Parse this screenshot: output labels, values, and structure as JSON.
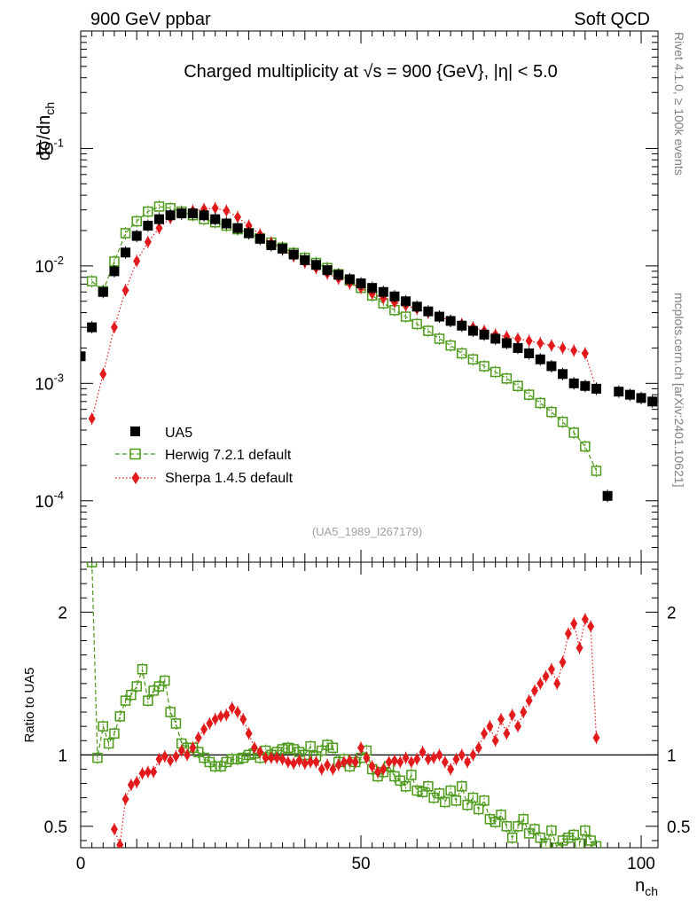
{
  "header": {
    "left": "900 GeV ppbar",
    "right": "Soft QCD"
  },
  "side_labels": {
    "rivet": "Rivet 4.1.0, ≥ 100k events",
    "mcplots": "mcplots.cern.ch [arXiv:2401.10621]"
  },
  "colors": {
    "data": "#000000",
    "herwig": "#4d9a1a",
    "sherpa": "#e31a1c",
    "ref_label": "#a0a0a0"
  },
  "chart_data": [
    {
      "type": "scatter",
      "title": "Charged multiplicity at √s = 900 {GeV}, |η| < 5.0",
      "ylabel": "dσ/dn_ch",
      "ylabel_main": "dσ/dn",
      "ylabel_sub": "ch",
      "yscale": "log",
      "xlim": [
        0,
        103
      ],
      "ylim": [
        3e-05,
        1.0
      ],
      "y_ticks": [
        "10^-4",
        "10^-3",
        "10^-2",
        "10^-1"
      ],
      "reference": "(UA5_1989_I267179)",
      "legend": [
        "UA5",
        "Herwig 7.2.1 default",
        "Sherpa 1.4.5 default"
      ],
      "series": [
        {
          "name": "UA5",
          "marker": "filled-square",
          "x": [
            0,
            2,
            4,
            6,
            8,
            10,
            12,
            14,
            16,
            18,
            20,
            22,
            24,
            26,
            28,
            30,
            32,
            34,
            36,
            38,
            40,
            42,
            44,
            46,
            48,
            50,
            52,
            54,
            56,
            58,
            60,
            62,
            64,
            66,
            68,
            70,
            72,
            74,
            76,
            78,
            80,
            82,
            84,
            86,
            88,
            90,
            92,
            94,
            96,
            98,
            100,
            102
          ],
          "y": [
            0.0017,
            0.003,
            0.006,
            0.009,
            0.013,
            0.018,
            0.022,
            0.025,
            0.027,
            0.028,
            0.028,
            0.027,
            0.025,
            0.023,
            0.021,
            0.019,
            0.017,
            0.015,
            0.014,
            0.0125,
            0.0112,
            0.0102,
            0.0092,
            0.0084,
            0.0077,
            0.0071,
            0.0065,
            0.006,
            0.0055,
            0.005,
            0.0045,
            0.0041,
            0.0037,
            0.0034,
            0.0031,
            0.0028,
            0.0026,
            0.0024,
            0.0022,
            0.002,
            0.0018,
            0.0016,
            0.0014,
            0.0012,
            0.001,
            0.00095,
            0.0009,
            0.00011,
            0.00085,
            0.0008,
            0.00075,
            0.0007
          ]
        },
        {
          "name": "Herwig 7.2.1 default",
          "marker": "open-square",
          "line": "dashed",
          "x": [
            2,
            4,
            6,
            8,
            10,
            12,
            14,
            16,
            18,
            20,
            22,
            24,
            26,
            28,
            30,
            32,
            34,
            36,
            38,
            40,
            42,
            44,
            46,
            48,
            50,
            52,
            54,
            56,
            58,
            60,
            62,
            64,
            66,
            68,
            70,
            72,
            74,
            76,
            78,
            80,
            82,
            84,
            86,
            88,
            90,
            92
          ],
          "y": [
            0.0074,
            0.0061,
            0.0109,
            0.019,
            0.024,
            0.029,
            0.032,
            0.031,
            0.029,
            0.027,
            0.025,
            0.0235,
            0.022,
            0.0205,
            0.019,
            0.0172,
            0.0158,
            0.0143,
            0.0129,
            0.0117,
            0.0106,
            0.0096,
            0.0085,
            0.0075,
            0.0065,
            0.0056,
            0.0048,
            0.0042,
            0.0037,
            0.0032,
            0.0028,
            0.0024,
            0.0021,
            0.0018,
            0.0016,
            0.0014,
            0.00125,
            0.0011,
            0.00095,
            0.0008,
            0.00068,
            0.00057,
            0.00047,
            0.00038,
            0.00029,
            0.00018
          ]
        },
        {
          "name": "Sherpa 1.4.5 default",
          "marker": "filled-diamond",
          "line": "dotted",
          "x": [
            2,
            4,
            6,
            8,
            10,
            12,
            14,
            16,
            18,
            20,
            22,
            24,
            26,
            28,
            30,
            32,
            34,
            36,
            38,
            40,
            42,
            44,
            46,
            48,
            50,
            52,
            54,
            56,
            58,
            60,
            62,
            64,
            66,
            68,
            70,
            72,
            74,
            76,
            78,
            80,
            82,
            84,
            86,
            88,
            90,
            92
          ],
          "y": [
            0.0005,
            0.0012,
            0.003,
            0.0062,
            0.011,
            0.016,
            0.021,
            0.0255,
            0.028,
            0.0295,
            0.0305,
            0.031,
            0.0295,
            0.026,
            0.022,
            0.0185,
            0.0157,
            0.0138,
            0.0121,
            0.0107,
            0.0096,
            0.0086,
            0.0078,
            0.0071,
            0.0065,
            0.0058,
            0.0053,
            0.0049,
            0.0046,
            0.0043,
            0.004,
            0.0037,
            0.0034,
            0.0032,
            0.003,
            0.0028,
            0.0026,
            0.0025,
            0.0024,
            0.0023,
            0.0022,
            0.0021,
            0.002,
            0.0019,
            0.0018,
            0.0009
          ]
        }
      ]
    },
    {
      "type": "scatter",
      "ylabel": "Ratio to UA5",
      "xlabel": "n_ch",
      "xlabel_main": "n",
      "xlabel_sub": "ch",
      "xlim": [
        0,
        103
      ],
      "ylim": [
        0.35,
        2.35
      ],
      "x_ticks": [
        "0",
        "50",
        "100"
      ],
      "y_ticks": [
        "0.5",
        "1",
        "2"
      ],
      "reference_line": 1.0,
      "series": [
        {
          "name": "Herwig 7.2.1 default",
          "marker": "open-square",
          "line": "dashed",
          "x": [
            2,
            3,
            4,
            5,
            6,
            7,
            8,
            9,
            10,
            11,
            12,
            13,
            14,
            15,
            16,
            17,
            18,
            19,
            20,
            21,
            22,
            23,
            24,
            25,
            26,
            27,
            28,
            29,
            30,
            31,
            32,
            33,
            34,
            35,
            36,
            37,
            38,
            39,
            40,
            41,
            42,
            43,
            44,
            45,
            46,
            47,
            48,
            49,
            50,
            51,
            52,
            53,
            54,
            55,
            56,
            57,
            58,
            59,
            60,
            61,
            62,
            63,
            64,
            65,
            66,
            67,
            68,
            69,
            70,
            71,
            72,
            73,
            74,
            75,
            76,
            77,
            78,
            79,
            80,
            81,
            82,
            83,
            84,
            85,
            86,
            87,
            88,
            89,
            90,
            91,
            92
          ],
          "y": [
            2.35,
            0.98,
            1.2,
            1.08,
            1.15,
            1.27,
            1.38,
            1.42,
            1.48,
            1.6,
            1.38,
            1.45,
            1.48,
            1.52,
            1.3,
            1.22,
            1.08,
            1.05,
            1.05,
            1.02,
            0.98,
            0.95,
            0.92,
            0.92,
            0.95,
            0.97,
            0.97,
            0.98,
            1.0,
            1.01,
            0.98,
            1.03,
            1.0,
            1.02,
            1.04,
            1.05,
            1.04,
            1.02,
            1.0,
            1.06,
            0.99,
            1.03,
            1.07,
            1.05,
            0.95,
            0.97,
            0.92,
            0.95,
            0.98,
            1.03,
            0.9,
            0.85,
            0.88,
            0.92,
            0.85,
            0.82,
            0.78,
            0.86,
            0.75,
            0.74,
            0.78,
            0.7,
            0.73,
            0.67,
            0.75,
            0.68,
            0.78,
            0.65,
            0.7,
            0.62,
            0.68,
            0.55,
            0.53,
            0.58,
            0.5,
            0.42,
            0.5,
            0.55,
            0.45,
            0.48,
            0.42,
            0.38,
            0.47,
            0.35,
            0.4,
            0.42,
            0.44,
            0.38,
            0.47,
            0.4,
            0.36
          ]
        },
        {
          "name": "Sherpa 1.4.5 default",
          "marker": "filled-diamond",
          "line": "dotted",
          "x": [
            6,
            7,
            8,
            9,
            10,
            11,
            12,
            13,
            14,
            15,
            16,
            17,
            18,
            19,
            20,
            21,
            22,
            23,
            24,
            25,
            26,
            27,
            28,
            29,
            30,
            31,
            32,
            33,
            34,
            35,
            36,
            37,
            38,
            39,
            40,
            41,
            42,
            43,
            44,
            45,
            46,
            47,
            48,
            49,
            50,
            51,
            52,
            53,
            54,
            55,
            56,
            57,
            58,
            59,
            60,
            61,
            62,
            63,
            64,
            65,
            66,
            67,
            68,
            69,
            70,
            71,
            72,
            73,
            74,
            75,
            76,
            77,
            78,
            79,
            80,
            81,
            82,
            83,
            84,
            85,
            86,
            87,
            88,
            89,
            90,
            91,
            92
          ],
          "y": [
            0.48,
            0.37,
            0.69,
            0.79,
            0.81,
            0.87,
            0.88,
            0.88,
            0.97,
            0.99,
            0.96,
            0.99,
            1.03,
            1.0,
            1.05,
            1.12,
            1.18,
            1.22,
            1.25,
            1.27,
            1.28,
            1.33,
            1.3,
            1.25,
            1.15,
            1.05,
            1.02,
            0.98,
            0.98,
            0.98,
            0.97,
            0.95,
            0.94,
            0.96,
            0.94,
            0.95,
            0.95,
            0.9,
            0.93,
            0.9,
            0.93,
            0.95,
            0.96,
            0.95,
            1.05,
            0.98,
            0.92,
            0.88,
            0.9,
            0.95,
            0.96,
            0.95,
            0.98,
            0.95,
            0.97,
            1.02,
            0.97,
            0.98,
            1.0,
            0.95,
            0.9,
            0.97,
            1.0,
            0.95,
            1.0,
            1.05,
            1.15,
            1.2,
            1.1,
            1.25,
            1.15,
            1.28,
            1.2,
            1.3,
            1.38,
            1.45,
            1.5,
            1.55,
            1.6,
            1.5,
            1.65,
            1.85,
            1.92,
            1.75,
            1.95,
            1.9,
            1.12
          ]
        }
      ]
    }
  ]
}
